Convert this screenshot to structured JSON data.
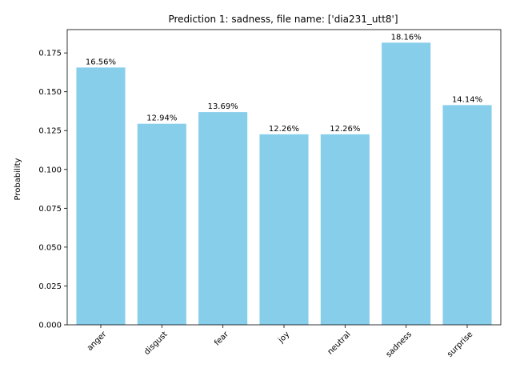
{
  "chart_data": {
    "type": "bar",
    "title": "Prediction 1: sadness, file name: ['dia231_utt8']",
    "xlabel": "",
    "ylabel": "Probability",
    "categories": [
      "anger",
      "disgust",
      "fear",
      "joy",
      "neutral",
      "sadness",
      "surprise"
    ],
    "values": [
      0.1656,
      0.1294,
      0.1369,
      0.1226,
      0.1226,
      0.1816,
      0.1414
    ],
    "data_labels": [
      "16.56%",
      "12.94%",
      "13.69%",
      "12.26%",
      "12.26%",
      "18.16%",
      "14.14%"
    ],
    "yticks": [
      "0.000",
      "0.025",
      "0.050",
      "0.075",
      "0.100",
      "0.125",
      "0.150",
      "0.175"
    ],
    "ylim": [
      0,
      0.19
    ],
    "bar_color": "#87CEEB",
    "grid": false,
    "legend": "none"
  }
}
